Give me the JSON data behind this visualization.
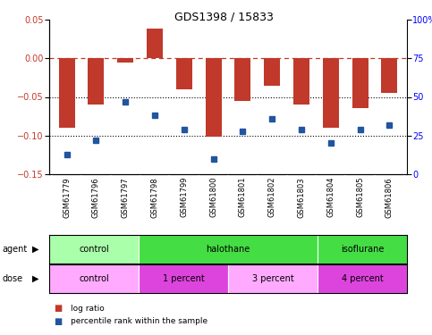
{
  "title": "GDS1398 / 15833",
  "samples": [
    "GSM61779",
    "GSM61796",
    "GSM61797",
    "GSM61798",
    "GSM61799",
    "GSM61800",
    "GSM61801",
    "GSM61802",
    "GSM61803",
    "GSM61804",
    "GSM61805",
    "GSM61806"
  ],
  "log_ratio": [
    -0.09,
    -0.06,
    -0.005,
    0.038,
    -0.04,
    -0.102,
    -0.055,
    -0.035,
    -0.06,
    -0.09,
    -0.065,
    -0.045
  ],
  "percentile_rank": [
    13,
    22,
    47,
    38,
    29,
    10,
    28,
    36,
    29,
    20,
    29,
    32
  ],
  "ylim_left": [
    -0.15,
    0.05
  ],
  "ylim_right": [
    0,
    100
  ],
  "right_ticks": [
    0,
    25,
    50,
    75,
    100
  ],
  "right_tick_labels": [
    "0",
    "25",
    "50",
    "75",
    "100%"
  ],
  "left_ticks": [
    -0.15,
    -0.1,
    -0.05,
    0.0,
    0.05
  ],
  "dotted_lines": [
    -0.05,
    -0.1
  ],
  "bar_color": "#C0392B",
  "dot_color": "#2155A0",
  "agent_groups": [
    {
      "label": "control",
      "start": 0,
      "end": 3,
      "color": "#AAFFAA"
    },
    {
      "label": "halothane",
      "start": 3,
      "end": 9,
      "color": "#44DD44"
    },
    {
      "label": "isoflurane",
      "start": 9,
      "end": 12,
      "color": "#44DD44"
    }
  ],
  "dose_groups": [
    {
      "label": "control",
      "start": 0,
      "end": 3,
      "color": "#FFAAFF"
    },
    {
      "label": "1 percent",
      "start": 3,
      "end": 6,
      "color": "#DD44DD"
    },
    {
      "label": "3 percent",
      "start": 6,
      "end": 9,
      "color": "#FFAAFF"
    },
    {
      "label": "4 percent",
      "start": 9,
      "end": 12,
      "color": "#DD44DD"
    }
  ],
  "legend_items": [
    {
      "label": "log ratio",
      "color": "#C0392B"
    },
    {
      "label": "percentile rank within the sample",
      "color": "#2155A0"
    }
  ],
  "sample_bg": "#D3D3D3",
  "sample_divider": "#FFFFFF",
  "background_color": "#FFFFFF"
}
